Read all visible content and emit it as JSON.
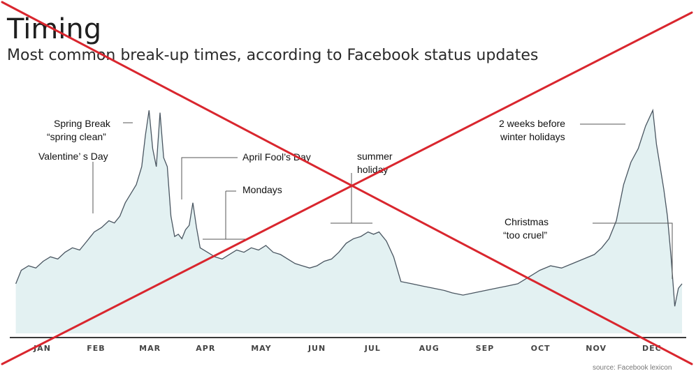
{
  "chart_data": {
    "type": "area",
    "title": "Timing",
    "subtitle": "Most common break-up times, according to Facebook status updates",
    "source": "source: Facebook lexicon",
    "x_tick_labels": [
      "JAN",
      "FEB",
      "MAR",
      "APR",
      "MAY",
      "JUN",
      "JUL",
      "AUG",
      "SEP",
      "OCT",
      "NOV",
      "DEC"
    ],
    "ylim": [
      0,
      100
    ],
    "grid": false,
    "series": [
      {
        "points": [
          [
            1,
            22
          ],
          [
            4,
            28
          ],
          [
            8,
            30
          ],
          [
            12,
            29
          ],
          [
            16,
            32
          ],
          [
            20,
            34
          ],
          [
            24,
            33
          ],
          [
            28,
            36
          ],
          [
            32,
            38
          ],
          [
            36,
            37
          ],
          [
            40,
            41
          ],
          [
            44,
            45
          ],
          [
            48,
            47
          ],
          [
            52,
            50
          ],
          [
            55,
            49
          ],
          [
            58,
            52
          ],
          [
            61,
            58
          ],
          [
            64,
            62
          ],
          [
            67,
            66
          ],
          [
            70,
            74
          ],
          [
            72,
            88
          ],
          [
            74,
            99
          ],
          [
            76,
            82
          ],
          [
            78,
            74
          ],
          [
            80,
            98
          ],
          [
            82,
            78
          ],
          [
            84,
            74
          ],
          [
            86,
            52
          ],
          [
            88,
            43
          ],
          [
            90,
            44
          ],
          [
            92,
            42
          ],
          [
            94,
            46
          ],
          [
            96,
            48
          ],
          [
            98,
            58
          ],
          [
            100,
            47
          ],
          [
            102,
            38
          ],
          [
            106,
            36
          ],
          [
            110,
            34
          ],
          [
            114,
            33
          ],
          [
            118,
            35
          ],
          [
            122,
            37
          ],
          [
            126,
            36
          ],
          [
            130,
            38
          ],
          [
            134,
            37
          ],
          [
            138,
            39
          ],
          [
            142,
            36
          ],
          [
            146,
            35
          ],
          [
            150,
            33
          ],
          [
            154,
            31
          ],
          [
            158,
            30
          ],
          [
            162,
            29
          ],
          [
            166,
            30
          ],
          [
            170,
            32
          ],
          [
            174,
            33
          ],
          [
            178,
            36
          ],
          [
            182,
            40
          ],
          [
            186,
            42
          ],
          [
            190,
            43
          ],
          [
            194,
            45
          ],
          [
            197,
            44
          ],
          [
            200,
            45
          ],
          [
            204,
            41
          ],
          [
            208,
            34
          ],
          [
            212,
            23
          ],
          [
            218,
            22
          ],
          [
            224,
            21
          ],
          [
            230,
            20
          ],
          [
            236,
            19
          ],
          [
            240,
            18
          ],
          [
            246,
            17
          ],
          [
            252,
            18
          ],
          [
            258,
            19
          ],
          [
            264,
            20
          ],
          [
            270,
            21
          ],
          [
            276,
            22
          ],
          [
            282,
            25
          ],
          [
            288,
            28
          ],
          [
            294,
            30
          ],
          [
            300,
            29
          ],
          [
            306,
            31
          ],
          [
            312,
            33
          ],
          [
            318,
            35
          ],
          [
            322,
            38
          ],
          [
            326,
            42
          ],
          [
            330,
            50
          ],
          [
            334,
            66
          ],
          [
            338,
            76
          ],
          [
            342,
            82
          ],
          [
            346,
            92
          ],
          [
            350,
            99
          ],
          [
            352,
            84
          ],
          [
            356,
            64
          ],
          [
            358,
            52
          ],
          [
            360,
            34
          ],
          [
            362,
            12
          ],
          [
            364,
            20
          ],
          [
            366,
            22
          ]
        ]
      }
    ],
    "annotations": [
      {
        "lines": [
          "Spring Break",
          "“spring clean”"
        ]
      },
      {
        "lines": [
          "Valentine’ s Day"
        ]
      },
      {
        "lines": [
          "April Fool’s Day"
        ]
      },
      {
        "lines": [
          "Mondays"
        ]
      },
      {
        "lines": [
          "summer",
          "holiday"
        ]
      },
      {
        "lines": [
          "2 weeks before",
          "winter holidays"
        ]
      },
      {
        "lines": [
          "Christmas",
          "“too cruel”"
        ]
      }
    ],
    "colors": {
      "area_fill": "#e3f1f2",
      "line": "#4a5661",
      "axis": "#3a3a3a",
      "cross": "#d9262e"
    }
  }
}
